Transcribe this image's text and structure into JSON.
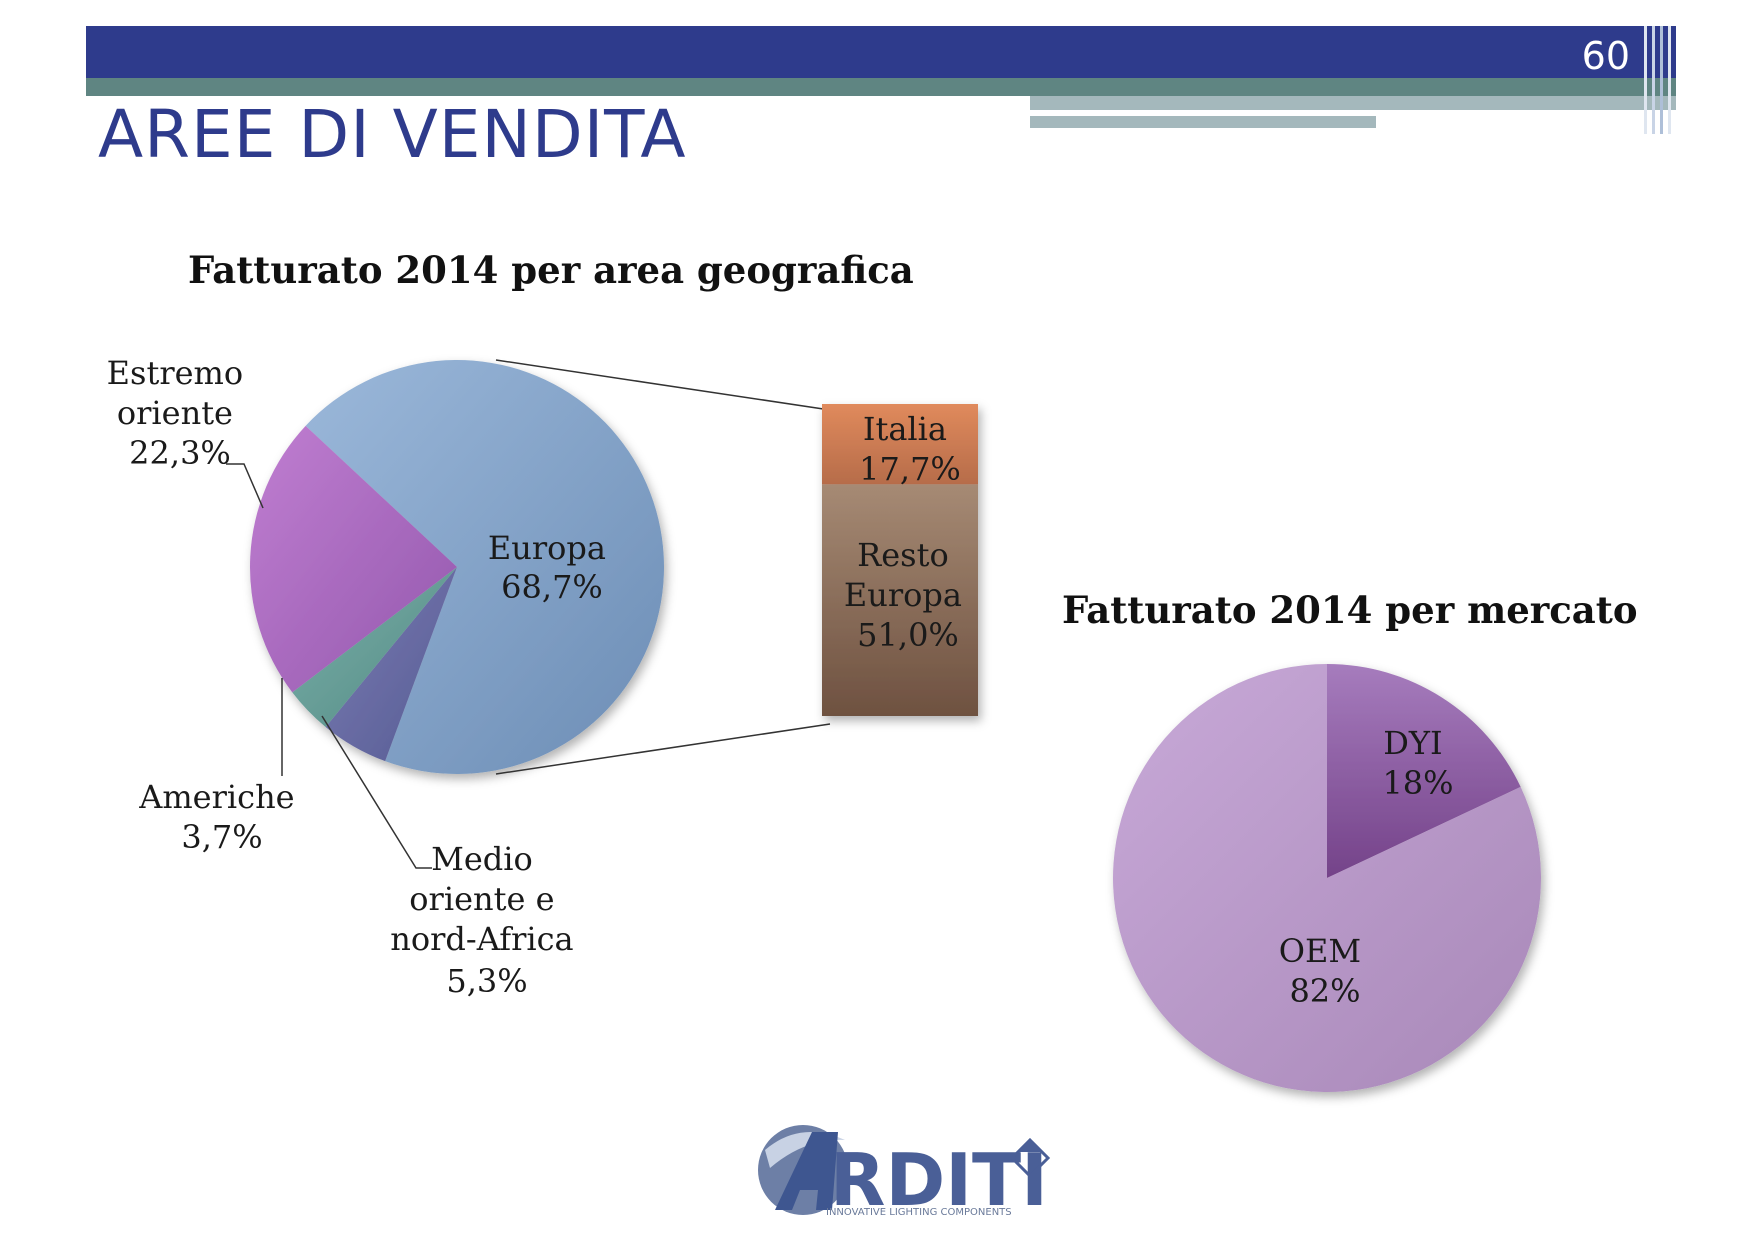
{
  "header": {
    "page_number": "60",
    "title": "AREE DI VENDITA"
  },
  "colors": {
    "header_blue": "#2e3b8c",
    "header_teal": "#5f8582",
    "header_light": "#a4b8bc"
  },
  "logo": {
    "text": "RDITI",
    "tagline": "INNOVATIVE LIGHTING COMPONENTS"
  },
  "chart_data": [
    {
      "type": "pie",
      "title": "Fatturato 2014 per area geografica",
      "slices": [
        {
          "name": "Europa",
          "value": 68.7,
          "label": "68,7%",
          "color": "#7e9fc6"
        },
        {
          "name": "Medio oriente e nord-Africa",
          "value": 5.3,
          "label": "5,3%",
          "color": "#6468a0"
        },
        {
          "name": "Americhe",
          "value": 3.7,
          "label": "3,7%",
          "color": "#5f9891"
        },
        {
          "name": "Estremo oriente",
          "value": 22.3,
          "label": "22,3%",
          "color": "#a669bd"
        }
      ],
      "breakout": {
        "of": "Europa",
        "segments": [
          {
            "name": "Italia",
            "value": 17.7,
            "label": "17,7%",
            "color": "#c97b55"
          },
          {
            "name": "Resto Europa",
            "value": 51.0,
            "label": "51,0%",
            "color": "#8c6a52"
          }
        ]
      }
    },
    {
      "type": "pie",
      "title": "Fatturato 2014 per mercato",
      "slices": [
        {
          "name": "DYI",
          "value": 18,
          "label": "18%",
          "color": "#8e5fa3"
        },
        {
          "name": "OEM",
          "value": 82,
          "label": "82%",
          "color": "#b999c6"
        }
      ]
    }
  ]
}
